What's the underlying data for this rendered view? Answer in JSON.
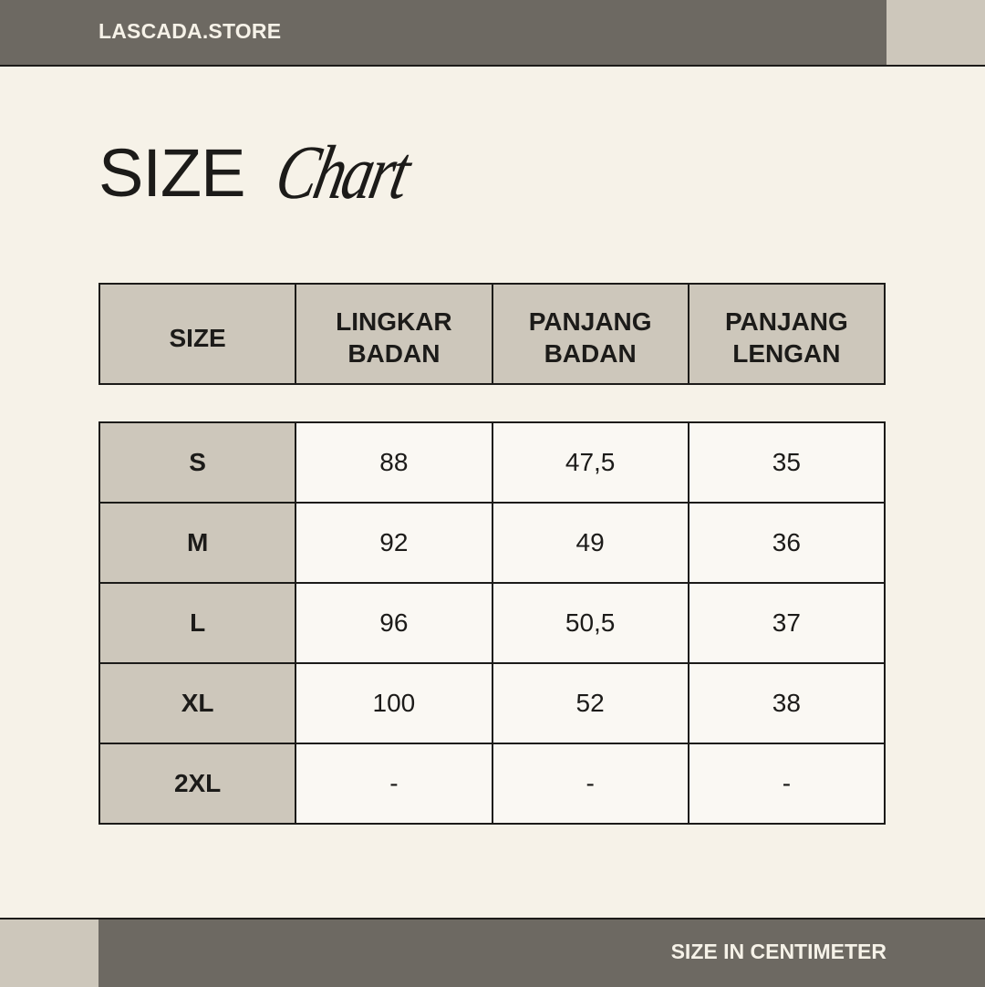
{
  "header": {
    "brand": "LASCADA.STORE"
  },
  "title": {
    "main": "SIZE",
    "script": "Chart"
  },
  "table": {
    "columns": [
      "SIZE",
      "LINGKAR BADAN",
      "PANJANG BADAN",
      "PANJANG LENGAN"
    ],
    "rows": [
      [
        "S",
        "88",
        "47,5",
        "35"
      ],
      [
        "M",
        "92",
        "49",
        "36"
      ],
      [
        "L",
        "96",
        "50,5",
        "37"
      ],
      [
        "XL",
        "100",
        "52",
        "38"
      ],
      [
        "2XL",
        "-",
        "-",
        "-"
      ]
    ]
  },
  "footer": {
    "note": "SIZE IN CENTIMETER"
  },
  "colors": {
    "bar": "#6d6962",
    "accent": "#cdc7bb",
    "background": "#f6f2e8"
  }
}
